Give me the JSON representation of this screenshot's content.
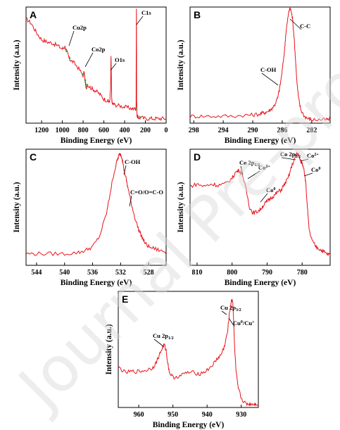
{
  "figure": {
    "watermark": "Journal Pre-proof",
    "colors": {
      "series": "#e8141c",
      "peak_marker": "#3fa83f",
      "axis": "#000000",
      "watermark": "#d9d9d9"
    }
  },
  "chart_data": [
    {
      "panel": "A",
      "type": "line",
      "xlabel": "Binding Energy (eV)",
      "ylabel": "Intensity (a.u.)",
      "xlim": [
        1350,
        0
      ],
      "x_ticks": [
        1200,
        1000,
        800,
        600,
        400,
        200,
        0
      ],
      "x": [
        1350,
        1300,
        1250,
        1200,
        1150,
        1100,
        1050,
        1000,
        975,
        950,
        930,
        900,
        850,
        800,
        790,
        780,
        770,
        760,
        720,
        680,
        640,
        600,
        560,
        545,
        535,
        531,
        525,
        520,
        500,
        450,
        400,
        350,
        300,
        290,
        286,
        284,
        280,
        270,
        250,
        200,
        150,
        100,
        50,
        0
      ],
      "y": [
        0.9,
        0.86,
        0.78,
        0.72,
        0.7,
        0.69,
        0.67,
        0.64,
        0.66,
        0.6,
        0.55,
        0.53,
        0.48,
        0.41,
        0.44,
        0.36,
        0.3,
        0.33,
        0.3,
        0.28,
        0.25,
        0.21,
        0.19,
        0.18,
        0.3,
        0.58,
        0.22,
        0.17,
        0.16,
        0.15,
        0.14,
        0.13,
        0.12,
        0.12,
        0.99,
        0.2,
        0.06,
        0.05,
        0.05,
        0.04,
        0.04,
        0.04,
        0.04,
        0.04
      ],
      "annotations": [
        {
          "label": "C1s",
          "x": 285
        },
        {
          "label": "Cu2p",
          "x": 933
        },
        {
          "label": "Co2p",
          "x": 780
        },
        {
          "label": "O1s",
          "x": 531
        }
      ]
    },
    {
      "panel": "B",
      "type": "line",
      "xlabel": "Binding Energy (eV)",
      "ylabel": "Intensity (a.u.)",
      "xlim": [
        298.5,
        279.5
      ],
      "x_ticks": [
        298,
        294,
        290,
        286,
        282
      ],
      "x": [
        298.5,
        297,
        295,
        293,
        291,
        290,
        289,
        288.5,
        288,
        287.5,
        287,
        286.6,
        286.3,
        286,
        285.7,
        285.5,
        285.2,
        285,
        284.8,
        284.6,
        284.4,
        284.2,
        284,
        283.8,
        283.5,
        283,
        282.5,
        282,
        281,
        280,
        279.5
      ],
      "y": [
        0.06,
        0.06,
        0.06,
        0.06,
        0.07,
        0.07,
        0.08,
        0.09,
        0.1,
        0.12,
        0.16,
        0.22,
        0.32,
        0.45,
        0.62,
        0.78,
        0.92,
        0.99,
        0.97,
        0.9,
        0.75,
        0.55,
        0.35,
        0.22,
        0.12,
        0.06,
        0.04,
        0.03,
        0.03,
        0.03,
        0.03
      ],
      "annotations": [
        {
          "label": "C-C",
          "x": 285
        },
        {
          "label": "C-OH",
          "x": 286.3
        }
      ]
    },
    {
      "panel": "C",
      "type": "line",
      "xlabel": "Binding Energy (eV)",
      "ylabel": "Intensity (a.u.)",
      "xlim": [
        545.5,
        525.5
      ],
      "x_ticks": [
        544,
        540,
        536,
        532,
        528
      ],
      "x": [
        545.5,
        544,
        542,
        540,
        538,
        537,
        536,
        535,
        534,
        533.5,
        533,
        532.5,
        532.2,
        532,
        531.8,
        531.5,
        531.2,
        531,
        530.5,
        530,
        529.5,
        529,
        528.5,
        528,
        527,
        526,
        525.5
      ],
      "y": [
        0.1,
        0.1,
        0.1,
        0.1,
        0.11,
        0.13,
        0.16,
        0.25,
        0.45,
        0.62,
        0.78,
        0.9,
        0.95,
        0.96,
        0.93,
        0.82,
        0.74,
        0.68,
        0.54,
        0.42,
        0.32,
        0.25,
        0.19,
        0.16,
        0.14,
        0.12,
        0.12
      ],
      "annotations": [
        {
          "label": "C-OH",
          "x": 532
        },
        {
          "label": "C=O/O=C-O",
          "x": 531
        }
      ]
    },
    {
      "panel": "D",
      "type": "line",
      "xlabel": "Binding Energy (eV)",
      "ylabel": "Intensity (a.u.)",
      "xlim": [
        812,
        772
      ],
      "x_ticks": [
        810,
        800,
        790,
        780
      ],
      "x": [
        812,
        810,
        808,
        806,
        804,
        802,
        800,
        799,
        798,
        797,
        796,
        795,
        794,
        793,
        792,
        791,
        790,
        789,
        788,
        787,
        786,
        785,
        784,
        783,
        782,
        781.5,
        781,
        780.5,
        780,
        779.5,
        779,
        778.5,
        778,
        777,
        776,
        775,
        774,
        773,
        772
      ],
      "y": [
        0.68,
        0.7,
        0.68,
        0.7,
        0.69,
        0.7,
        0.75,
        0.8,
        0.82,
        0.78,
        0.65,
        0.5,
        0.45,
        0.46,
        0.48,
        0.52,
        0.55,
        0.58,
        0.6,
        0.63,
        0.65,
        0.7,
        0.75,
        0.85,
        0.93,
        0.97,
        0.95,
        0.9,
        0.88,
        0.84,
        0.72,
        0.5,
        0.3,
        0.2,
        0.16,
        0.14,
        0.12,
        0.1,
        0.09
      ],
      "annotations": [
        {
          "label": "Co 2p1/2",
          "x": 797
        },
        {
          "label": "Co2+",
          "x": 796
        },
        {
          "label": "Co0",
          "x": 793
        },
        {
          "label": "Co 2p3/2",
          "x": 781.5
        },
        {
          "label": "Co2+",
          "x": 781
        },
        {
          "label": "Co0",
          "x": 778.5
        }
      ]
    },
    {
      "panel": "E",
      "type": "line",
      "xlabel": "Binding Energy (eV)",
      "ylabel": "Intensity (a.u.)",
      "xlim": [
        966,
        925
      ],
      "x_ticks": [
        960,
        950,
        940,
        930
      ],
      "x": [
        966,
        964,
        962,
        960,
        958,
        956,
        955,
        954,
        953,
        952.5,
        952,
        951.5,
        951,
        950,
        948,
        946,
        944,
        942,
        940,
        938,
        937,
        936,
        935,
        934,
        933.5,
        933,
        932.7,
        932.5,
        932.3,
        932,
        931.5,
        931,
        930,
        929,
        928,
        927,
        926,
        925
      ],
      "y": [
        0.35,
        0.3,
        0.31,
        0.31,
        0.32,
        0.34,
        0.38,
        0.45,
        0.52,
        0.54,
        0.49,
        0.38,
        0.3,
        0.26,
        0.27,
        0.3,
        0.3,
        0.29,
        0.32,
        0.38,
        0.42,
        0.45,
        0.52,
        0.65,
        0.8,
        0.9,
        0.93,
        0.91,
        0.8,
        0.55,
        0.3,
        0.18,
        0.08,
        0.04,
        0.03,
        0.03,
        0.03,
        0.03
      ],
      "annotations": [
        {
          "label": "Cu 2p1/2",
          "x": 952.5
        },
        {
          "label": "Cu 2p3/2",
          "x": 932.7
        },
        {
          "label": "Cu0/Cu+",
          "x": 932.5
        }
      ]
    }
  ]
}
